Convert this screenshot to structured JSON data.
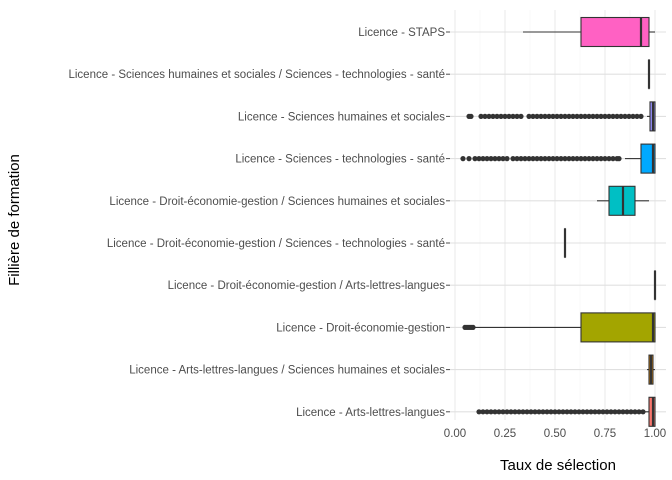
{
  "chart_data": {
    "type": "boxplot",
    "orientation": "horizontal",
    "xlabel": "Taux de sélection",
    "ylabel": "Fillière de formation",
    "xlim": [
      0,
      1
    ],
    "xticks": [
      "0.00",
      "0.25",
      "0.50",
      "0.75",
      "1.00"
    ],
    "xtick_values": [
      0,
      0.25,
      0.5,
      0.75,
      1.0
    ],
    "grid": "major",
    "legend": "none",
    "categories": [
      "Licence - STAPS",
      "Licence - Sciences humaines et sociales / Sciences - technologies - santé",
      "Licence - Sciences humaines et sociales",
      "Licence - Sciences - technologies - santé",
      "Licence - Droit-économie-gestion / Sciences humaines et sociales",
      "Licence - Droit-économie-gestion / Sciences - technologies - santé",
      "Licence - Droit-économie-gestion / Arts-lettres-langues",
      "Licence - Droit-économie-gestion",
      "Licence - Arts-lettres-langues / Sciences humaines et sociales",
      "Licence - Arts-lettres-langues"
    ],
    "boxes": [
      {
        "min": 0.34,
        "q1": 0.63,
        "median": 0.93,
        "q3": 0.97,
        "max": 1.0,
        "color": "#FF61C3",
        "outliers": []
      },
      {
        "min": 0.97,
        "q1": 0.97,
        "median": 0.97,
        "q3": 0.97,
        "max": 0.97,
        "color": "#DB72FB",
        "outliers": []
      },
      {
        "min": 0.96,
        "q1": 0.975,
        "median": 0.99,
        "q3": 1.0,
        "max": 1.0,
        "color": "#9590FF",
        "outliers": [
          0.07,
          0.08,
          0.13,
          0.15,
          0.17,
          0.19,
          0.21,
          0.23,
          0.25,
          0.27,
          0.29,
          0.31,
          0.33,
          0.37,
          0.39,
          0.41,
          0.43,
          0.45,
          0.47,
          0.49,
          0.51,
          0.53,
          0.55,
          0.57,
          0.59,
          0.61,
          0.63,
          0.65,
          0.67,
          0.69,
          0.71,
          0.73,
          0.75,
          0.77,
          0.79,
          0.81,
          0.83,
          0.85,
          0.87,
          0.89,
          0.91,
          0.93
        ]
      },
      {
        "min": 0.85,
        "q1": 0.93,
        "median": 0.99,
        "q3": 1.0,
        "max": 1.0,
        "color": "#00A9FF",
        "outliers": [
          0.04,
          0.07,
          0.1,
          0.12,
          0.14,
          0.16,
          0.18,
          0.2,
          0.22,
          0.24,
          0.26,
          0.29,
          0.31,
          0.33,
          0.35,
          0.37,
          0.39,
          0.41,
          0.43,
          0.45,
          0.47,
          0.49,
          0.51,
          0.53,
          0.55,
          0.57,
          0.59,
          0.61,
          0.63,
          0.65,
          0.67,
          0.69,
          0.71,
          0.73,
          0.75,
          0.77,
          0.79,
          0.81,
          0.82
        ]
      },
      {
        "min": 0.71,
        "q1": 0.77,
        "median": 0.84,
        "q3": 0.9,
        "max": 0.97,
        "color": "#00BFC4",
        "outliers": []
      },
      {
        "min": 0.55,
        "q1": 0.55,
        "median": 0.55,
        "q3": 0.55,
        "max": 0.55,
        "color": "#00C19A",
        "outliers": []
      },
      {
        "min": 1.0,
        "q1": 1.0,
        "median": 1.0,
        "q3": 1.0,
        "max": 1.0,
        "color": "#53B400",
        "outliers": []
      },
      {
        "min": 0.1,
        "q1": 0.63,
        "median": 0.99,
        "q3": 1.0,
        "max": 1.0,
        "color": "#A3A500",
        "outliers": [
          0.05,
          0.06,
          0.07,
          0.08,
          0.09
        ]
      },
      {
        "min": 0.96,
        "q1": 0.97,
        "median": 0.98,
        "q3": 0.99,
        "max": 1.0,
        "color": "#E58700",
        "outliers": []
      },
      {
        "min": 0.95,
        "q1": 0.97,
        "median": 0.99,
        "q3": 1.0,
        "max": 1.0,
        "color": "#F8766D",
        "outliers": [
          0.12,
          0.14,
          0.16,
          0.18,
          0.2,
          0.22,
          0.24,
          0.26,
          0.28,
          0.3,
          0.32,
          0.34,
          0.36,
          0.38,
          0.4,
          0.42,
          0.44,
          0.46,
          0.48,
          0.5,
          0.52,
          0.54,
          0.56,
          0.58,
          0.6,
          0.62,
          0.64,
          0.66,
          0.68,
          0.7,
          0.72,
          0.74,
          0.76,
          0.78,
          0.8,
          0.82,
          0.84,
          0.86,
          0.88,
          0.9,
          0.92,
          0.94
        ]
      }
    ]
  }
}
